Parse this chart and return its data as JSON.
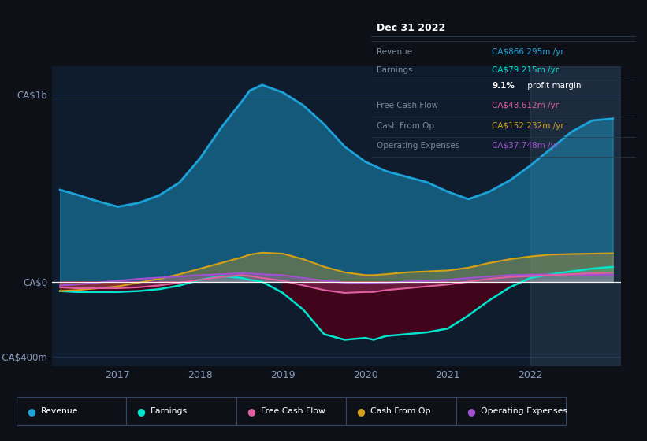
{
  "background_color": "#0d1117",
  "plot_bg_color": "#0e1c2e",
  "xlim": [
    2016.2,
    2023.1
  ],
  "ylim": [
    -450,
    1150
  ],
  "ytick_labels": [
    "CA$1b",
    "CA$0",
    "-CA$400m"
  ],
  "ytick_values": [
    1000,
    0,
    -400
  ],
  "xtick_labels": [
    "2017",
    "2018",
    "2019",
    "2020",
    "2021",
    "2022"
  ],
  "xtick_values": [
    2017,
    2018,
    2019,
    2020,
    2021,
    2022
  ],
  "colors": {
    "revenue": "#1da2d8",
    "earnings": "#00e5cc",
    "fcf": "#e05fa0",
    "cash_op": "#d4a017",
    "op_exp": "#a050d0"
  },
  "legend": [
    {
      "label": "Revenue",
      "color": "#1da2d8"
    },
    {
      "label": "Earnings",
      "color": "#00e5cc"
    },
    {
      "label": "Free Cash Flow",
      "color": "#e05fa0"
    },
    {
      "label": "Cash From Op",
      "color": "#d4a017"
    },
    {
      "label": "Operating Expenses",
      "color": "#a050d0"
    }
  ],
  "info_box": {
    "title": "Dec 31 2022",
    "rows": [
      {
        "label": "Revenue",
        "value": "CA$866.295m /yr",
        "value_color": "#1da2d8"
      },
      {
        "label": "Earnings",
        "value": "CA$79.215m /yr",
        "value_color": "#00e5cc"
      },
      {
        "label": "",
        "value_bold": "9.1%",
        "value_rest": " profit margin",
        "value_color": "#ffffff"
      },
      {
        "label": "Free Cash Flow",
        "value": "CA$48.612m /yr",
        "value_color": "#e05fa0"
      },
      {
        "label": "Cash From Op",
        "value": "CA$152.232m /yr",
        "value_color": "#d4a017"
      },
      {
        "label": "Operating Expenses",
        "value": "CA$37.748m /yr",
        "value_color": "#a050d0"
      }
    ]
  },
  "series": {
    "x": [
      2016.3,
      2016.5,
      2016.75,
      2017.0,
      2017.25,
      2017.5,
      2017.75,
      2018.0,
      2018.25,
      2018.5,
      2018.6,
      2018.75,
      2019.0,
      2019.25,
      2019.5,
      2019.75,
      2020.0,
      2020.1,
      2020.25,
      2020.5,
      2020.75,
      2021.0,
      2021.25,
      2021.5,
      2021.75,
      2022.0,
      2022.25,
      2022.5,
      2022.75,
      2023.0
    ],
    "revenue": [
      490,
      465,
      430,
      400,
      420,
      460,
      530,
      660,
      820,
      960,
      1020,
      1050,
      1010,
      940,
      840,
      720,
      640,
      620,
      590,
      560,
      530,
      480,
      440,
      480,
      540,
      620,
      710,
      800,
      860,
      870
    ],
    "earnings": [
      -50,
      -55,
      -55,
      -55,
      -50,
      -40,
      -20,
      10,
      30,
      20,
      10,
      0,
      -60,
      -150,
      -280,
      -310,
      -300,
      -310,
      -290,
      -280,
      -270,
      -250,
      -180,
      -100,
      -30,
      20,
      40,
      55,
      70,
      79
    ],
    "free_cash_flow": [
      -30,
      -35,
      -35,
      -35,
      -30,
      -20,
      -5,
      10,
      25,
      35,
      30,
      20,
      5,
      -20,
      -45,
      -60,
      -55,
      -55,
      -45,
      -35,
      -25,
      -15,
      0,
      15,
      25,
      30,
      35,
      40,
      45,
      48
    ],
    "cash_from_op": [
      -50,
      -45,
      -35,
      -25,
      -5,
      15,
      40,
      70,
      100,
      130,
      145,
      155,
      150,
      120,
      80,
      50,
      35,
      35,
      40,
      50,
      55,
      60,
      75,
      100,
      120,
      135,
      145,
      148,
      150,
      152
    ],
    "operating_expenses": [
      -20,
      -15,
      -5,
      5,
      15,
      22,
      28,
      35,
      40,
      45,
      43,
      40,
      35,
      20,
      5,
      -5,
      -8,
      -5,
      -5,
      0,
      5,
      10,
      20,
      28,
      35,
      38,
      38,
      37,
      37,
      38
    ]
  }
}
